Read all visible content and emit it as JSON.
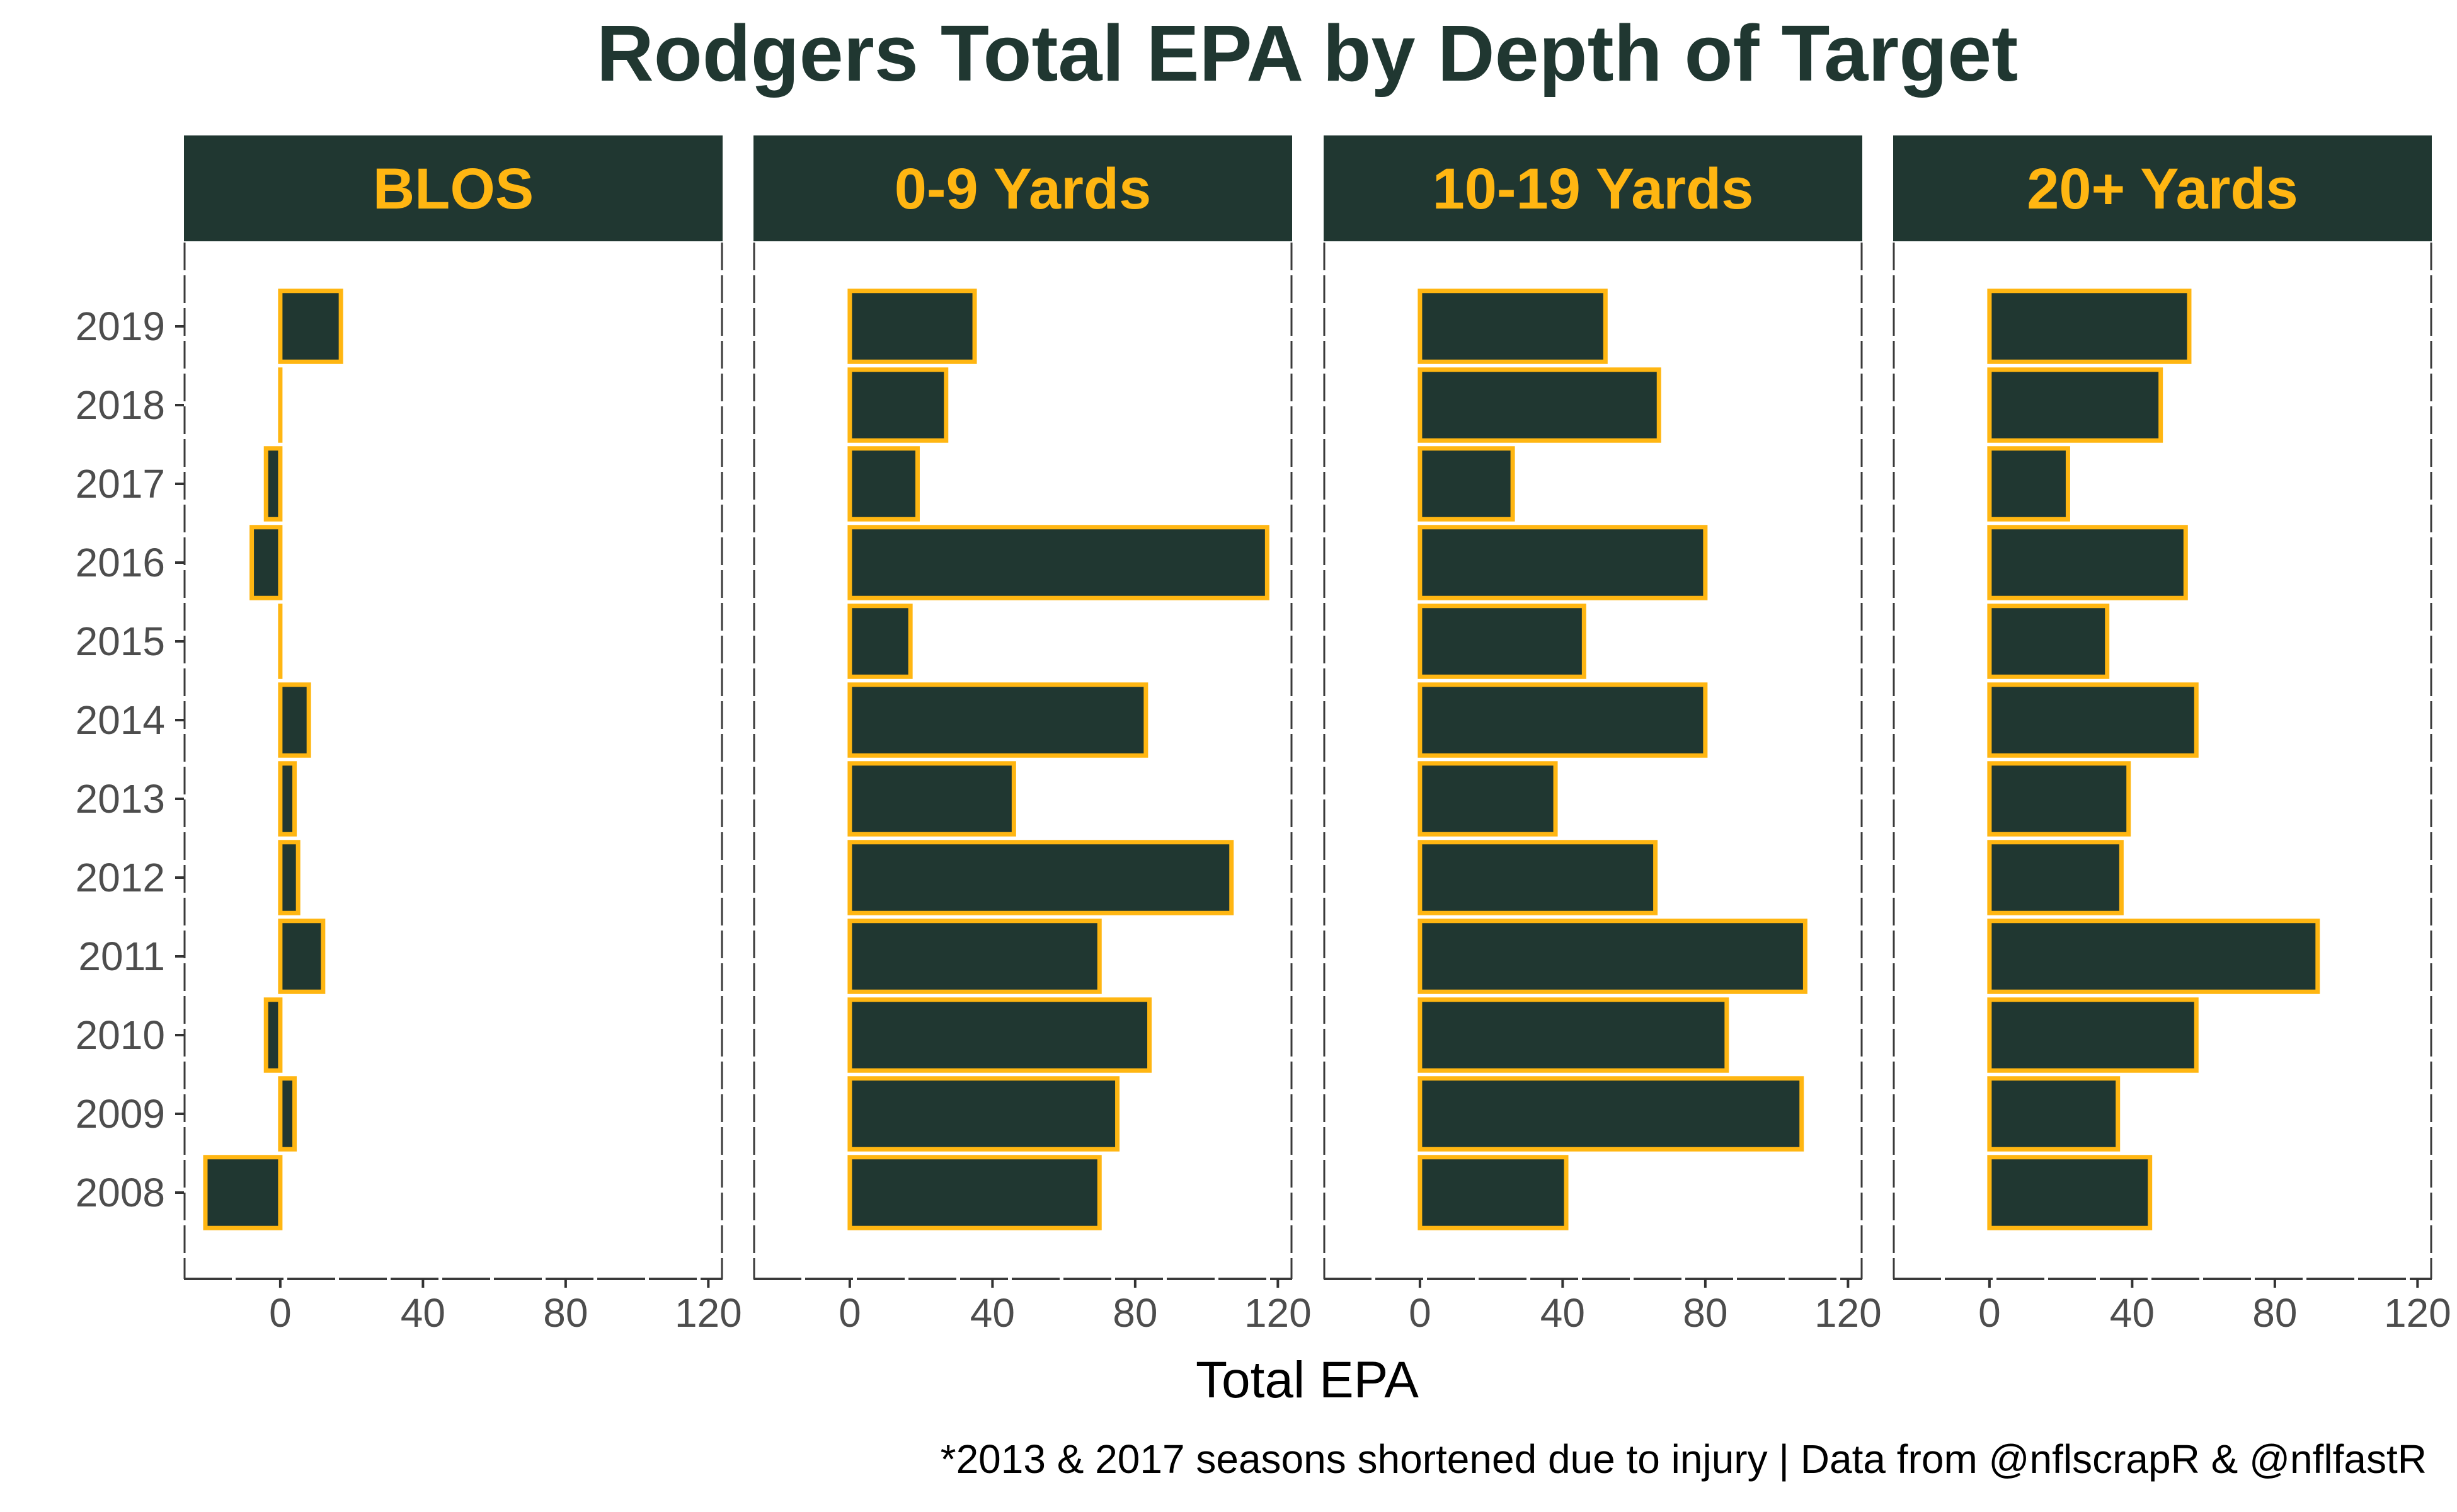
{
  "chart_data": {
    "type": "bar",
    "orientation": "horizontal",
    "title": "Rodgers Total EPA by Depth of Target",
    "xlabel": "Total EPA",
    "ylabel": "",
    "caption": "*2013 & 2017 seasons shortened due to injury | Data from @nflscrapR & @nflfastR",
    "xlim": [
      -27,
      124
    ],
    "x_ticks": [
      0,
      40,
      80,
      120
    ],
    "x_tick_labels": [
      "0",
      "40",
      "80",
      "120"
    ],
    "categories": [
      "2019",
      "2018",
      "2017",
      "2016",
      "2015",
      "2014",
      "2013",
      "2012",
      "2011",
      "2010",
      "2009",
      "2008"
    ],
    "grid": false,
    "panels": [
      {
        "name": "BLOS",
        "values": [
          17,
          0,
          -4,
          -8,
          0,
          8,
          4,
          5,
          12,
          -4,
          4,
          -21
        ]
      },
      {
        "name": "0-9 Yards",
        "values": [
          35,
          27,
          19,
          117,
          17,
          83,
          46,
          107,
          70,
          84,
          75,
          70
        ]
      },
      {
        "name": "10-19 Yards",
        "values": [
          52,
          67,
          26,
          80,
          46,
          80,
          38,
          66,
          108,
          86,
          107,
          41
        ]
      },
      {
        "name": "20+ Yards",
        "values": [
          56,
          48,
          22,
          55,
          33,
          58,
          39,
          37,
          92,
          58,
          36,
          45
        ]
      }
    ],
    "colors": {
      "bar_fill": "#203731",
      "bar_stroke": "#FFB612",
      "strip_fill": "#203731",
      "strip_text": "#FFB612",
      "title": "#203731",
      "axis": "#4d4d4d"
    }
  }
}
